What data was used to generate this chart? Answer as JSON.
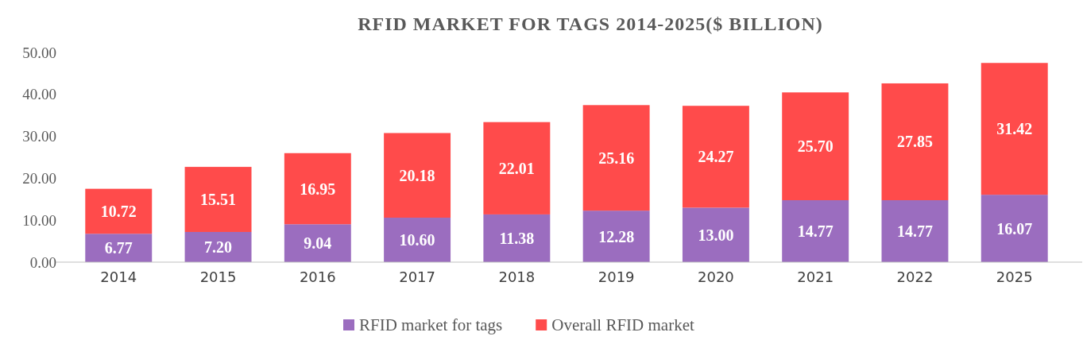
{
  "chart_data": {
    "type": "bar",
    "title": "RFID MARKET FOR TAGS 2014-2025($ BILLION)",
    "categories": [
      "2014",
      "2015",
      "2016",
      "2017",
      "2018",
      "2019",
      "2020",
      "2021",
      "2022",
      "2025"
    ],
    "stacked": true,
    "legend": "bottom",
    "ylim": [
      0,
      50
    ],
    "yticks": [
      {
        "value": 0,
        "label": "0.00"
      },
      {
        "value": 10,
        "label": "10.00"
      },
      {
        "value": 20,
        "label": "20.00"
      },
      {
        "value": 30,
        "label": "30.00"
      },
      {
        "value": 40,
        "label": "40.00"
      },
      {
        "value": 50,
        "label": "50.00"
      }
    ],
    "series": [
      {
        "name": "RFID market for tags",
        "color": "#9b6dbf",
        "values": [
          6.77,
          7.2,
          9.04,
          10.6,
          11.38,
          12.28,
          13.0,
          14.77,
          14.77,
          16.07
        ],
        "value_labels": [
          "6.77",
          "7.20",
          "9.04",
          "10.60",
          "11.38",
          "12.28",
          "13.00",
          "14.77",
          "14.77",
          "16.07"
        ]
      },
      {
        "name": "Overall RFID market",
        "color": "#ff4b4b",
        "values": [
          10.72,
          15.51,
          16.95,
          20.18,
          22.01,
          25.16,
          24.27,
          25.7,
          27.85,
          31.42
        ],
        "value_labels": [
          "10.72",
          "15.51",
          "16.95",
          "20.18",
          "22.01",
          "25.16",
          "24.27",
          "25.70",
          "27.85",
          "31.42"
        ]
      }
    ]
  }
}
